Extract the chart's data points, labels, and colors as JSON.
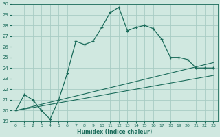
{
  "xlabel": "Humidex (Indice chaleur)",
  "bg_color": "#d0e8e0",
  "grid_color": "#a8ccc4",
  "line_color": "#1a6b5a",
  "xlim": [
    -0.5,
    23.5
  ],
  "ylim": [
    19,
    30
  ],
  "yticks": [
    19,
    20,
    21,
    22,
    23,
    24,
    25,
    26,
    27,
    28,
    29,
    30
  ],
  "xticks": [
    0,
    1,
    2,
    3,
    4,
    5,
    6,
    7,
    8,
    9,
    10,
    11,
    12,
    13,
    14,
    15,
    16,
    17,
    18,
    19,
    20,
    21,
    22,
    23
  ],
  "series1_x": [
    0,
    1,
    2,
    3,
    4,
    5,
    6,
    7,
    8,
    9,
    10,
    11,
    12,
    13,
    14,
    15,
    16,
    17,
    18,
    19,
    20,
    21,
    22,
    23
  ],
  "series1_y": [
    20.0,
    21.5,
    21.0,
    20.0,
    19.2,
    21.0,
    23.5,
    26.5,
    26.2,
    26.5,
    27.8,
    29.2,
    29.7,
    27.5,
    27.8,
    28.0,
    27.7,
    26.7,
    25.0,
    25.0,
    24.8,
    24.0,
    24.0,
    24.0
  ],
  "series2_x": [
    0,
    23
  ],
  "series2_y": [
    20.0,
    24.5
  ],
  "series3_x": [
    0,
    23
  ],
  "series3_y": [
    20.0,
    23.3
  ]
}
